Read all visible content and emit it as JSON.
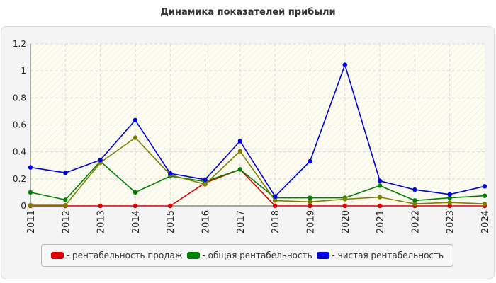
{
  "chart_data": {
    "type": "line",
    "title": "Динамика показателей прибыли",
    "x": [
      "2011",
      "2012",
      "2013",
      "2014",
      "2015",
      "2016",
      "2017",
      "2018",
      "2019",
      "2020",
      "2021",
      "2022",
      "2023",
      "2024"
    ],
    "y_ticks": [
      "0",
      "0.2",
      "0.4",
      "0.6",
      "0.8",
      "1",
      "1.2"
    ],
    "ylim": [
      0,
      1.2
    ],
    "grid": true,
    "legend_position": "bottom",
    "series": [
      {
        "name": "- рентабельность продаж",
        "color": "#e00000",
        "values": [
          0,
          0,
          0,
          0,
          0,
          0.17,
          0.27,
          0,
          0,
          0,
          0,
          0,
          0,
          0
        ]
      },
      {
        "name": "- общая рентабельность",
        "color": "#008000",
        "values": [
          0.1,
          0.045,
          0.33,
          0.1,
          0.22,
          0.18,
          0.27,
          0.06,
          0.06,
          0.06,
          0.15,
          0.04,
          0.06,
          0.075
        ]
      },
      {
        "name": "",
        "color": "#808000",
        "values": [
          0.005,
          0.005,
          0.32,
          0.505,
          0.23,
          0.16,
          0.405,
          0.04,
          0.03,
          0.05,
          0.065,
          0.015,
          0.025,
          0.015
        ]
      },
      {
        "name": "- чистая рентабельность",
        "color": "#0000e0",
        "values": [
          0.285,
          0.245,
          0.34,
          0.635,
          0.24,
          0.195,
          0.48,
          0.07,
          0.33,
          1.045,
          0.185,
          0.12,
          0.085,
          0.145
        ]
      }
    ],
    "legend": [
      {
        "label": "- рентабельность продаж",
        "color": "#e00000"
      },
      {
        "label": "- общая рентабельность",
        "color": "#008000"
      },
      {
        "label": "- чистая рентабельность",
        "color": "#0000e0"
      }
    ]
  }
}
